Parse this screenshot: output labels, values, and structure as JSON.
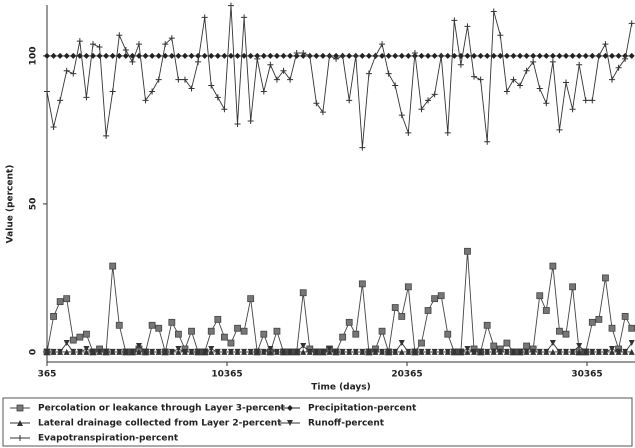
{
  "chart_data": {
    "type": "line",
    "x_label": "Time (days)",
    "y_label": "Value (percent)",
    "xlim": [
      365,
      33032
    ],
    "ylim": [
      -3.4,
      117.2
    ],
    "xticks": [
      365,
      10365,
      20365,
      30365
    ],
    "yticks": [
      0,
      50,
      100
    ],
    "grid": false,
    "x": [
      365,
      730,
      1095,
      1460,
      1825,
      2190,
      2555,
      2920,
      3285,
      3650,
      4015,
      4380,
      4745,
      5110,
      5475,
      5840,
      6205,
      6570,
      6935,
      7300,
      7665,
      8030,
      8395,
      8760,
      9125,
      9490,
      9855,
      10220,
      10585,
      10950,
      11315,
      11680,
      12045,
      12410,
      12775,
      13140,
      13505,
      13870,
      14235,
      14600,
      14965,
      15330,
      15695,
      16060,
      16425,
      16790,
      17155,
      17520,
      17885,
      18250,
      18615,
      18980,
      19345,
      19710,
      20075,
      20440,
      20805,
      21170,
      21535,
      21900,
      22265,
      22630,
      22995,
      23360,
      23725,
      24090,
      24455,
      24820,
      25185,
      25550,
      25915,
      26280,
      26645,
      27010,
      27375,
      27740,
      28105,
      28470,
      28835,
      29200,
      29565,
      29930,
      30295,
      30660,
      31025,
      31390,
      31755,
      32120,
      32485,
      32850
    ],
    "series": [
      {
        "name": "Percolation or leakance through Layer 3-percent",
        "color": "#444",
        "marker": "square",
        "values": [
          0,
          12,
          17,
          18,
          4,
          5,
          6,
          0,
          1,
          0,
          29,
          9,
          0,
          0,
          1,
          0,
          9,
          8,
          0,
          10,
          6,
          1,
          7,
          0,
          0,
          7,
          11,
          5,
          3,
          8,
          7,
          18,
          0,
          6,
          0,
          7,
          0,
          0,
          0,
          20,
          1,
          0,
          0,
          1,
          0,
          5,
          10,
          6,
          23,
          0,
          1,
          7,
          0,
          15,
          12,
          22,
          0,
          3,
          14,
          18,
          19,
          6,
          0,
          0,
          34,
          1,
          0,
          9,
          2,
          1,
          3,
          0,
          0,
          2,
          1,
          19,
          14,
          29,
          7,
          6,
          22,
          0,
          0,
          10,
          11,
          25,
          8,
          1,
          12,
          8
        ]
      },
      {
        "name": "Precipitation-percent",
        "color": "#222",
        "marker": "diamond",
        "values": [
          100,
          100,
          100,
          100,
          100,
          100,
          100,
          100,
          100,
          100,
          100,
          100,
          100,
          100,
          100,
          100,
          100,
          100,
          100,
          100,
          100,
          100,
          100,
          100,
          100,
          100,
          100,
          100,
          100,
          100,
          100,
          100,
          100,
          100,
          100,
          100,
          100,
          100,
          100,
          100,
          100,
          100,
          100,
          100,
          100,
          100,
          100,
          100,
          100,
          100,
          100,
          100,
          100,
          100,
          100,
          100,
          100,
          100,
          100,
          100,
          100,
          100,
          100,
          100,
          100,
          100,
          100,
          100,
          100,
          100,
          100,
          100,
          100,
          100,
          100,
          100,
          100,
          100,
          100,
          100,
          100,
          100,
          100,
          100,
          100,
          100,
          100,
          100,
          100,
          100
        ]
      },
      {
        "name": "Lateral drainage collected from Layer 2-percent",
        "color": "#333",
        "marker": "triangle-up",
        "values": [
          0,
          0,
          0,
          0,
          0,
          0,
          0,
          0,
          0,
          0,
          0,
          0,
          0,
          0,
          0,
          0,
          0,
          0,
          0,
          0,
          0,
          0,
          0,
          0,
          0,
          0,
          0,
          0,
          0,
          0,
          0,
          0,
          0,
          0,
          0,
          0,
          0,
          0,
          0,
          0,
          0,
          0,
          0,
          0,
          0,
          0,
          0,
          0,
          0,
          0,
          0,
          0,
          0,
          0,
          0,
          0,
          0,
          0,
          0,
          0,
          0,
          0,
          0,
          0,
          0,
          0,
          0,
          0,
          0,
          0,
          0,
          0,
          0,
          0,
          0,
          0,
          0,
          0,
          0,
          0,
          0,
          0,
          0,
          0,
          0,
          0,
          0,
          0,
          0,
          0
        ]
      },
      {
        "name": "Runoff-percent",
        "color": "#333",
        "marker": "triangle-down",
        "values": [
          0,
          0,
          0,
          3,
          0,
          0,
          1,
          0,
          0,
          0,
          0,
          0,
          0,
          0,
          2,
          0,
          0,
          0,
          0,
          0,
          1,
          0,
          0,
          0,
          0,
          1,
          0,
          0,
          0,
          0,
          0,
          0,
          0,
          0,
          1,
          0,
          0,
          0,
          0,
          2,
          0,
          0,
          0,
          1,
          0,
          0,
          0,
          0,
          0,
          0,
          0,
          0,
          0,
          0,
          3,
          0,
          0,
          0,
          0,
          0,
          0,
          0,
          0,
          0,
          1,
          0,
          0,
          0,
          0,
          0,
          0,
          0,
          0,
          0,
          0,
          0,
          0,
          3,
          0,
          0,
          0,
          2,
          0,
          0,
          0,
          0,
          1,
          0,
          0,
          3
        ]
      },
      {
        "name": "Evapotranspiration-percent",
        "color": "#333",
        "marker": "plus",
        "values": [
          88,
          76,
          85,
          95,
          94,
          105,
          86,
          104,
          103,
          73,
          88,
          107,
          102,
          98,
          104,
          85,
          88,
          92,
          104,
          106,
          92,
          92,
          89,
          98,
          113,
          90,
          86,
          82,
          117,
          77,
          113,
          78,
          99,
          88,
          97,
          92,
          95,
          92,
          101,
          101,
          100,
          84,
          81,
          100,
          99,
          100,
          85,
          100,
          69,
          94,
          100,
          104,
          94,
          90,
          80,
          74,
          101,
          82,
          85,
          87,
          100,
          74,
          112,
          97,
          110,
          93,
          92,
          71,
          115,
          107,
          88,
          92,
          90,
          95,
          98,
          89,
          84,
          98,
          75,
          91,
          82,
          97,
          85,
          85,
          100,
          104,
          92,
          96,
          99,
          111
        ]
      }
    ]
  }
}
